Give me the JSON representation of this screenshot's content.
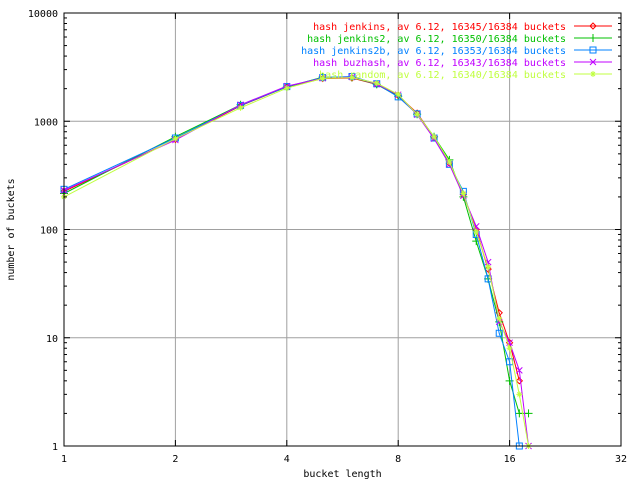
{
  "chart_data": {
    "type": "line",
    "title": "",
    "xlabel": "bucket length",
    "ylabel": "number of buckets",
    "x_scale": "log2",
    "y_scale": "log10",
    "xlim": [
      1,
      32
    ],
    "ylim": [
      1,
      10000
    ],
    "x_ticks": [
      {
        "value": 1,
        "label": "1"
      },
      {
        "value": 2,
        "label": "2"
      },
      {
        "value": 4,
        "label": "4"
      },
      {
        "value": 8,
        "label": "8"
      },
      {
        "value": 16,
        "label": "16"
      },
      {
        "value": 32,
        "label": "32"
      }
    ],
    "y_ticks": [
      {
        "value": 1,
        "label": "1"
      },
      {
        "value": 10,
        "label": "10"
      },
      {
        "value": 100,
        "label": "100"
      },
      {
        "value": 1000,
        "label": "1000"
      },
      {
        "value": 10000,
        "label": "10000"
      }
    ],
    "grid": true,
    "legend_position": "top-right",
    "series": [
      {
        "name": "hash jenkins, av 6.12, 16345/16384 buckets",
        "color": "#ff0000",
        "marker": "diamond",
        "x": [
          1,
          2,
          3,
          4,
          5,
          6,
          7,
          8,
          9,
          10,
          11,
          12,
          13,
          14,
          15,
          16,
          17
        ],
        "y": [
          225,
          680,
          1390,
          2080,
          2480,
          2510,
          2190,
          1730,
          1190,
          710,
          410,
          210,
          100,
          43,
          17,
          9,
          4
        ]
      },
      {
        "name": "hash jenkins2, av 6.12, 16350/16384 buckets",
        "color": "#00c000",
        "marker": "plus",
        "x": [
          1,
          2,
          3,
          4,
          5,
          6,
          7,
          8,
          9,
          10,
          11,
          12,
          13,
          14,
          15,
          16,
          17,
          18
        ],
        "y": [
          215,
          720,
          1420,
          2070,
          2560,
          2540,
          2190,
          1700,
          1160,
          720,
          440,
          200,
          78,
          35,
          14,
          4,
          2,
          2
        ]
      },
      {
        "name": "hash jenkins2b, av 6.12, 16353/16384 buckets",
        "color": "#0080ff",
        "marker": "square",
        "x": [
          1,
          2,
          3,
          4,
          5,
          6,
          7,
          8,
          9,
          10,
          11,
          12,
          13,
          14,
          15,
          16,
          17
        ],
        "y": [
          235,
          700,
          1400,
          2090,
          2530,
          2590,
          2220,
          1680,
          1170,
          700,
          400,
          225,
          90,
          35,
          11,
          6,
          1
        ]
      },
      {
        "name": "hash buzhash, av 6.12, 16343/16384 buckets",
        "color": "#c000ff",
        "marker": "cross",
        "x": [
          1,
          2,
          3,
          4,
          5,
          6,
          7,
          8,
          9,
          10,
          11,
          12,
          13,
          14,
          15,
          16,
          17,
          18
        ],
        "y": [
          230,
          670,
          1420,
          2110,
          2500,
          2560,
          2210,
          1760,
          1150,
          690,
          400,
          205,
          107,
          50,
          14,
          9,
          5,
          1
        ]
      },
      {
        "name": "hash random, av 6.12, 16340/16384 buckets",
        "color": "#c0ff40",
        "marker": "star",
        "x": [
          1,
          2,
          3,
          4,
          5,
          6,
          7,
          8,
          9,
          10,
          11,
          12,
          13,
          14,
          15,
          16,
          17,
          18
        ],
        "y": [
          200,
          690,
          1330,
          2020,
          2490,
          2530,
          2250,
          1770,
          1160,
          720,
          420,
          215,
          95,
          45,
          15,
          8,
          3,
          1
        ]
      }
    ]
  }
}
